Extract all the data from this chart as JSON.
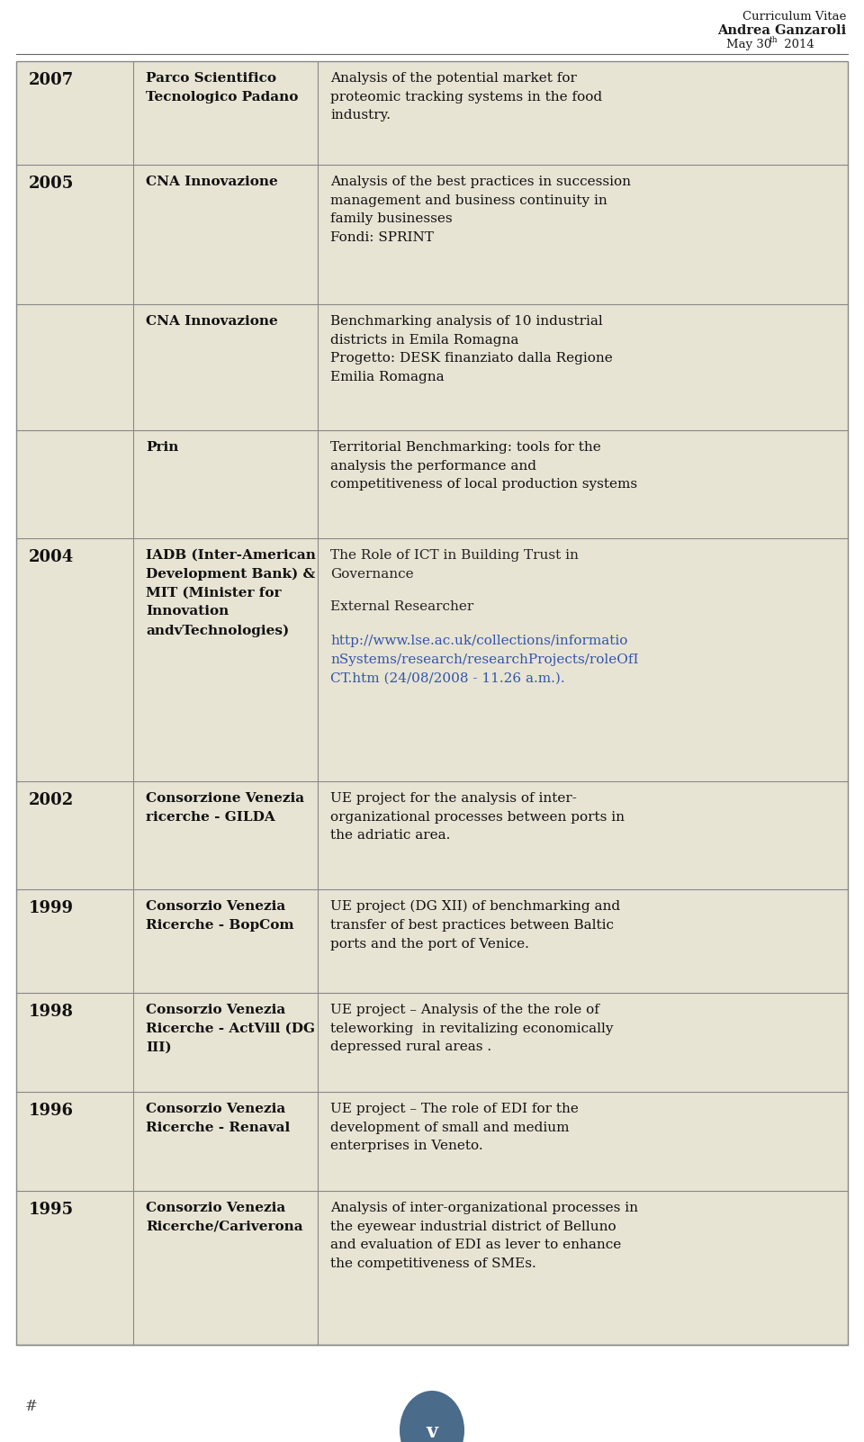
{
  "bg_color": "#f5f5f0",
  "white": "#ffffff",
  "table_bg": "#e8e4d4",
  "border_color": "#888888",
  "text_color": "#222222",
  "header_name": "Andrea Ganzaroli",
  "header_title": "Curriculum Vitae",
  "hash_symbol": "#",
  "circle_color": "#4a6b8a",
  "circle_letter": "v",
  "rows": [
    {
      "year": "2007",
      "org": "Parco Scientifico\nTecnologico Padano",
      "desc": "Analysis of the potential market for\nproteomic tracking systems in the food\nindustry."
    },
    {
      "year": "2005",
      "org": "CNA Innovazione",
      "desc": "Analysis of the best practices in succession\nmanagement and business continuity in\nfamily businesses\nFondi: SPRINT"
    },
    {
      "year": "",
      "org": "CNA Innovazione",
      "desc": "Benchmarking analysis of 10 industrial\ndistricts in Emila Romagna\nProgetto: DESK finanziato dalla Regione\nEmilia Romagna"
    },
    {
      "year": "",
      "org": "Prin",
      "desc": "Territorial Benchmarking: tools for the\nanalysis the performance and\ncompetitiveness of local production systems"
    },
    {
      "year": "2004",
      "org": "IADB (Inter-American\nDevelopment Bank) &\nMIT (Minister for\nInnovation\nandvTechnologies)",
      "desc_parts": [
        {
          "text": "The Role of ICT in Building Trust in\nGovernance",
          "color": "#222222"
        },
        {
          "text": "",
          "color": "#222222"
        },
        {
          "text": "External Researcher",
          "color": "#222222"
        },
        {
          "text": "",
          "color": "#222222"
        },
        {
          "text": "http://www.lse.ac.uk/collections/informatio\nnSystems/research/researchProjects/roleOfI\nCT.htm (24/08/2008 - 11.26 a.m.).",
          "color": "#3355aa"
        }
      ]
    },
    {
      "year": "2002",
      "org": "Consorzione Venezia\nricerche - GILDA",
      "desc": "UE project for the analysis of inter-\norganizational processes between ports in\nthe adriatic area."
    },
    {
      "year": "1999",
      "org": "Consorzio Venezia\nRicerche - BopCom",
      "desc": "UE project (DG XII) of benchmarking and\ntransfer of best practices between Baltic\nports and the port of Venice."
    },
    {
      "year": "1998",
      "org": "Consorzio Venezia\nRicerche - ActVill (DG\nIII)",
      "desc": "UE project – Analysis of the the role of\nteleworking  in revitalizing economically\ndepressed rural areas ."
    },
    {
      "year": "1996",
      "org": "Consorzio Venezia\nRicerche - Renaval",
      "desc": "UE project – The role of EDI for the\ndevelopment of small and medium\nenterprises in Veneto."
    },
    {
      "year": "1995",
      "org": "Consorzio Venezia\nRicerche/Cariverona",
      "desc": "Analysis of inter-organizational processes in\nthe eyewear industrial district of Belluno\nand evaluation of EDI as lever to enhance\nthe competitiveness of SMEs."
    }
  ]
}
